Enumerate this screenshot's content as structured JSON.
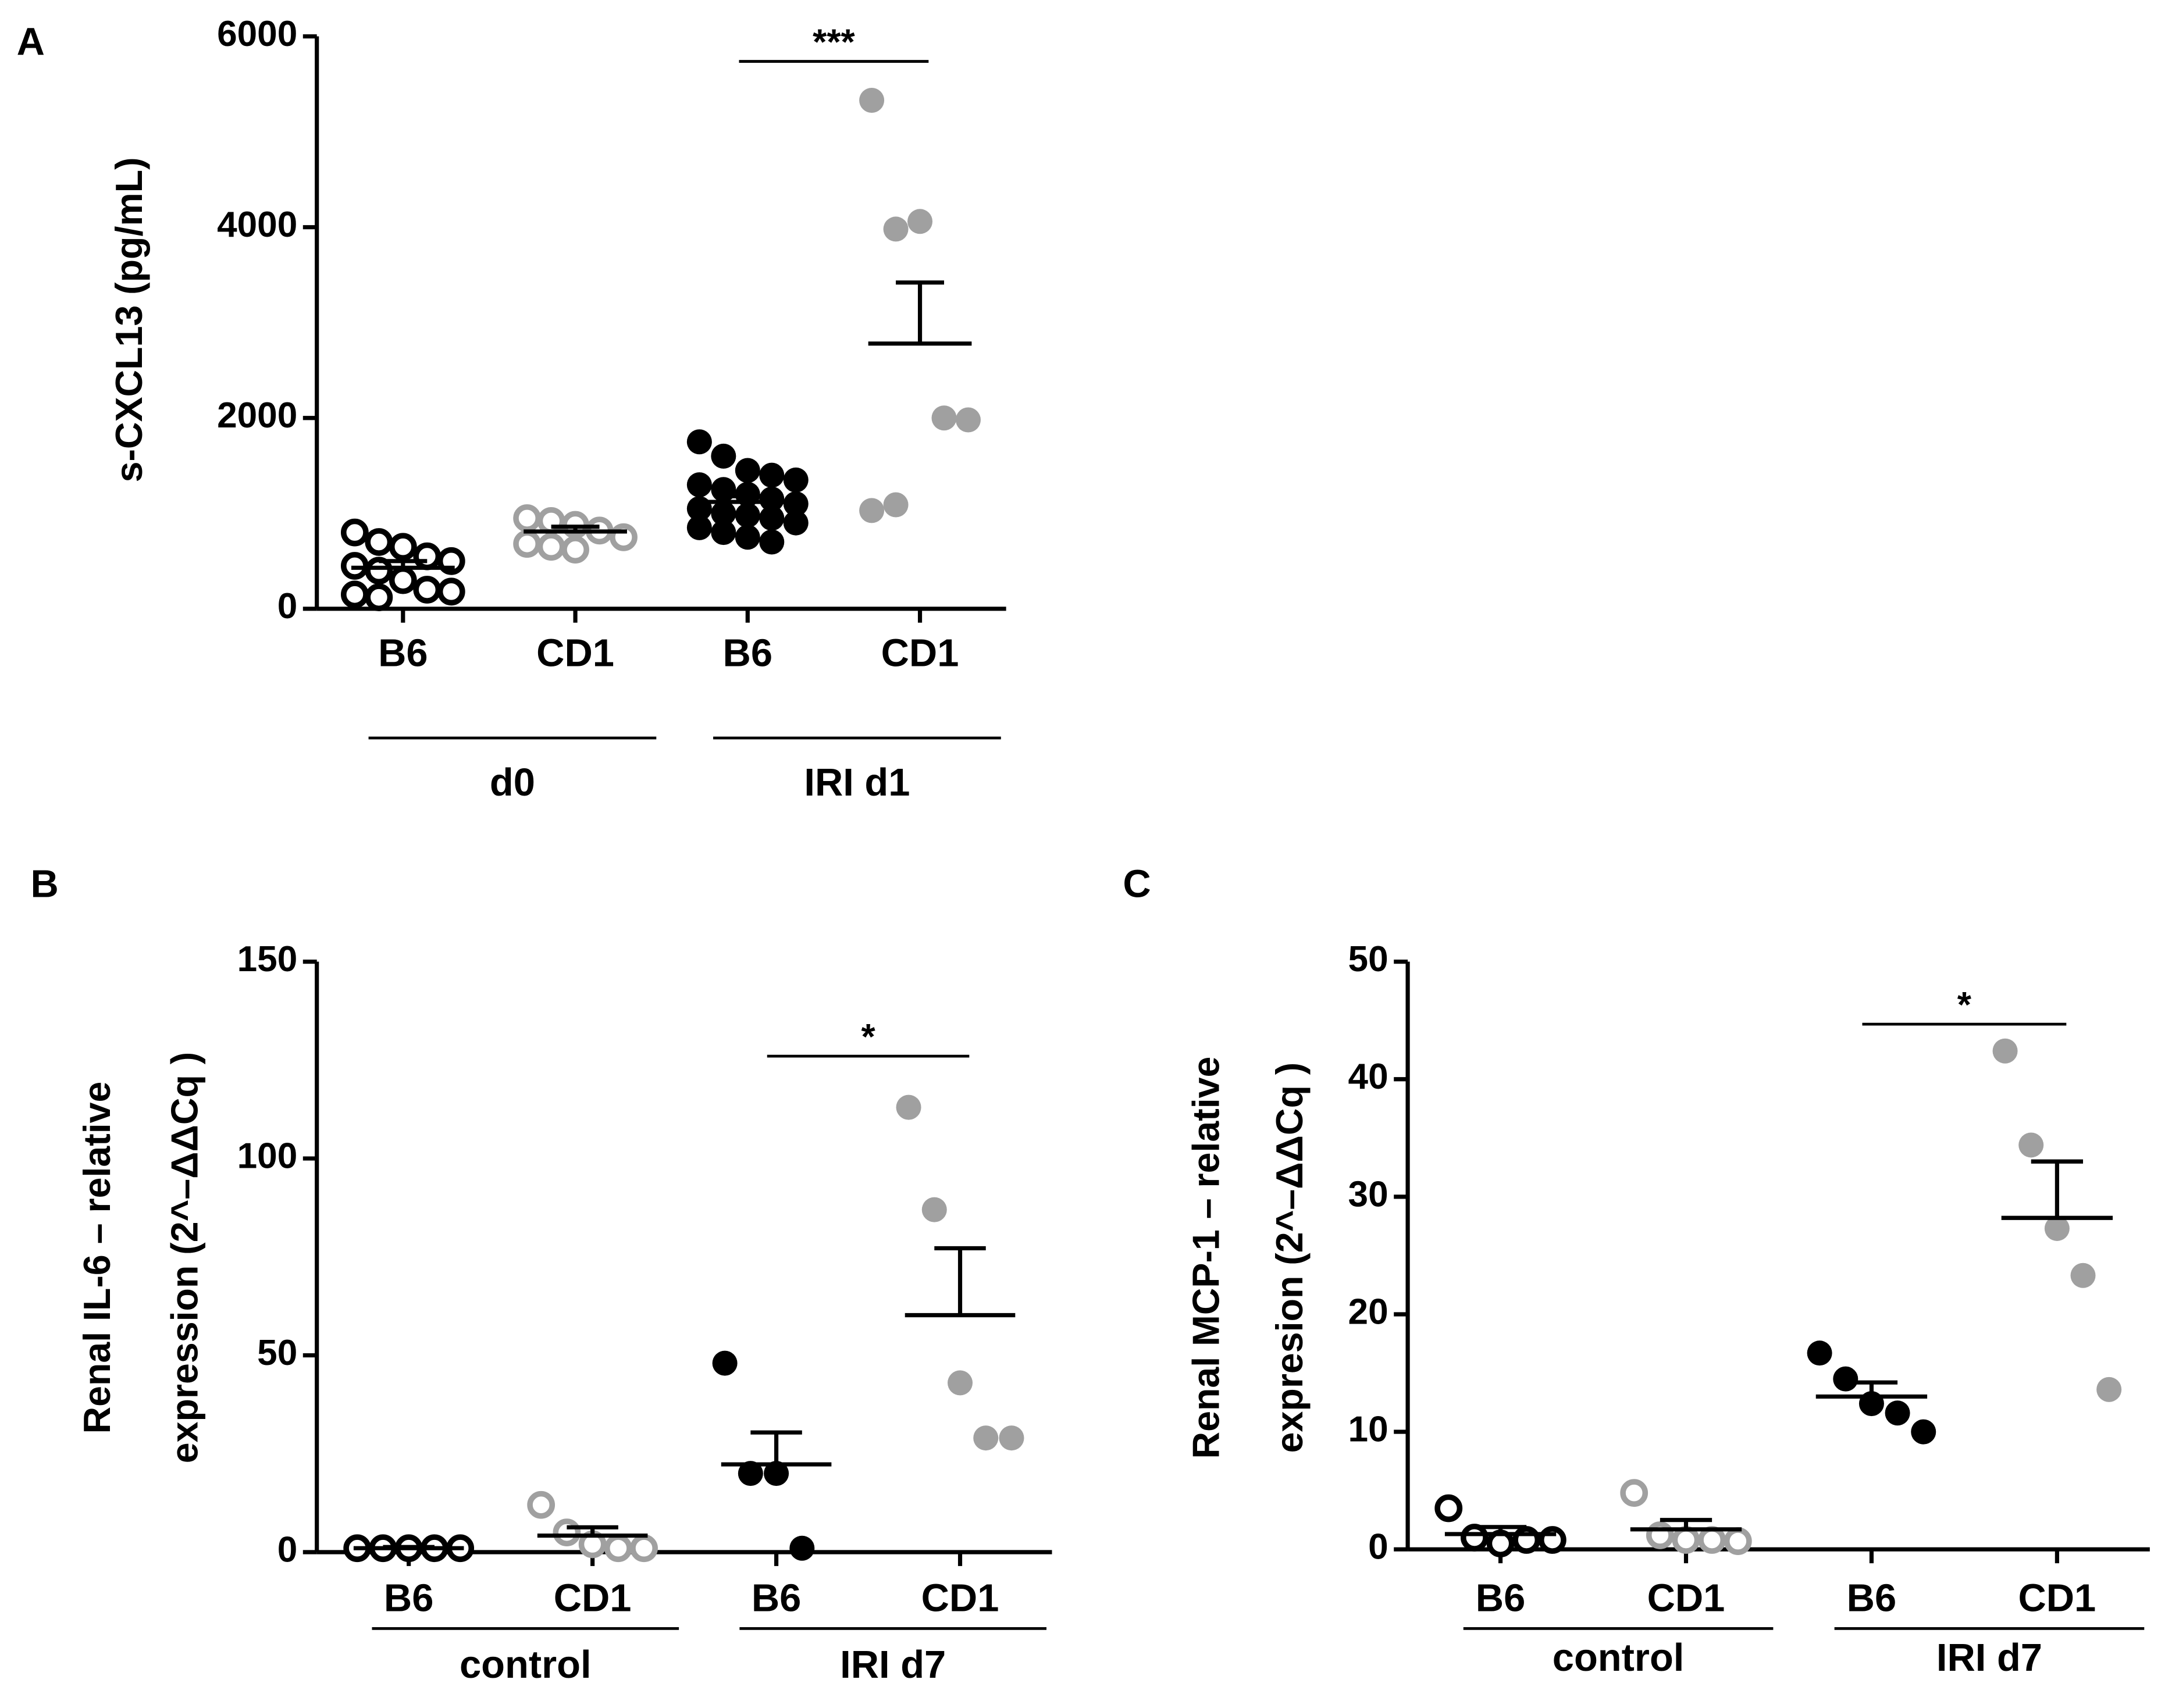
{
  "chart_data": [
    {
      "type": "dotplot",
      "panel": "A",
      "ylabel": [
        "s-CXCL13 (pg/mL)"
      ],
      "categories": [
        "B6",
        "CD1",
        "B6",
        "CD1"
      ],
      "groups": [
        "d0",
        "IRI d1"
      ],
      "colors": [
        "#000000",
        "#a0a0a0",
        "#000000",
        "#a0a0a0"
      ],
      "filled": [
        false,
        false,
        true,
        true
      ],
      "points": [
        [
          800,
          700,
          650,
          550,
          500,
          450,
          400,
          300,
          200,
          180,
          150,
          120
        ],
        [
          950,
          920,
          880,
          820,
          750,
          680,
          650,
          620
        ],
        [
          1750,
          1600,
          1450,
          1400,
          1350,
          1300,
          1250,
          1200,
          1150,
          1100,
          1050,
          1000,
          980,
          950,
          900,
          850,
          800,
          750,
          700
        ],
        [
          5330,
          3980,
          4060,
          2000,
          1980,
          1030,
          1090
        ]
      ],
      "means": [
        430,
        810,
        1120,
        2780
      ],
      "sems": [
        70,
        50,
        60,
        640
      ],
      "significance": {
        "label": "***",
        "from": 2,
        "to": 3
      },
      "ylim": [
        0,
        6000
      ],
      "yticks": [
        0,
        2000,
        4000,
        6000
      ]
    },
    {
      "type": "dotplot",
      "panel": "B",
      "ylabel": [
        "Renal IL-6 – relative",
        "expression (2^–ΔΔCq )"
      ],
      "categories": [
        "B6",
        "CD1",
        "B6",
        "CD1"
      ],
      "groups": [
        "control",
        "IRI d7"
      ],
      "colors": [
        "#000000",
        "#a0a0a0",
        "#000000",
        "#a0a0a0"
      ],
      "filled": [
        false,
        false,
        true,
        true
      ],
      "points": [
        [
          1,
          1,
          1,
          1,
          1
        ],
        [
          12,
          5,
          2,
          1,
          1
        ],
        [
          48,
          20,
          20,
          1
        ],
        [
          113,
          87,
          43,
          29,
          29
        ]
      ],
      "means": [
        1,
        4.2,
        22.3,
        60.2
      ],
      "sems": [
        0.3,
        2.1,
        8.1,
        17
      ],
      "significance": {
        "label": "*",
        "from": 2,
        "to": 3
      },
      "ylim": [
        0,
        150
      ],
      "yticks": [
        0,
        50,
        100,
        150
      ]
    },
    {
      "type": "dotplot",
      "panel": "C",
      "ylabel": [
        "Renal MCP-1 – relative",
        "expresion (2^–ΔΔCq )"
      ],
      "categories": [
        "B6",
        "CD1",
        "B6",
        "CD1"
      ],
      "groups": [
        "control",
        "IRI d7"
      ],
      "colors": [
        "#000000",
        "#a0a0a0",
        "#000000",
        "#a0a0a0"
      ],
      "filled": [
        false,
        false,
        true,
        true
      ],
      "points": [
        [
          3.5,
          1,
          0.5,
          0.8,
          0.8
        ],
        [
          4.8,
          1.2,
          0.8,
          0.8,
          0.7
        ],
        [
          16.7,
          14.5,
          12.4,
          11.6,
          10
        ],
        [
          42.4,
          34.4,
          27.3,
          23.3,
          13.6
        ]
      ],
      "means": [
        1.3,
        1.7,
        13.0,
        28.2
      ],
      "sems": [
        0.6,
        0.8,
        1.2,
        4.8
      ],
      "significance": {
        "label": "*",
        "from": 2,
        "to": 3
      },
      "ylim": [
        0,
        50
      ],
      "yticks": [
        0,
        10,
        20,
        30,
        40,
        50
      ]
    }
  ]
}
